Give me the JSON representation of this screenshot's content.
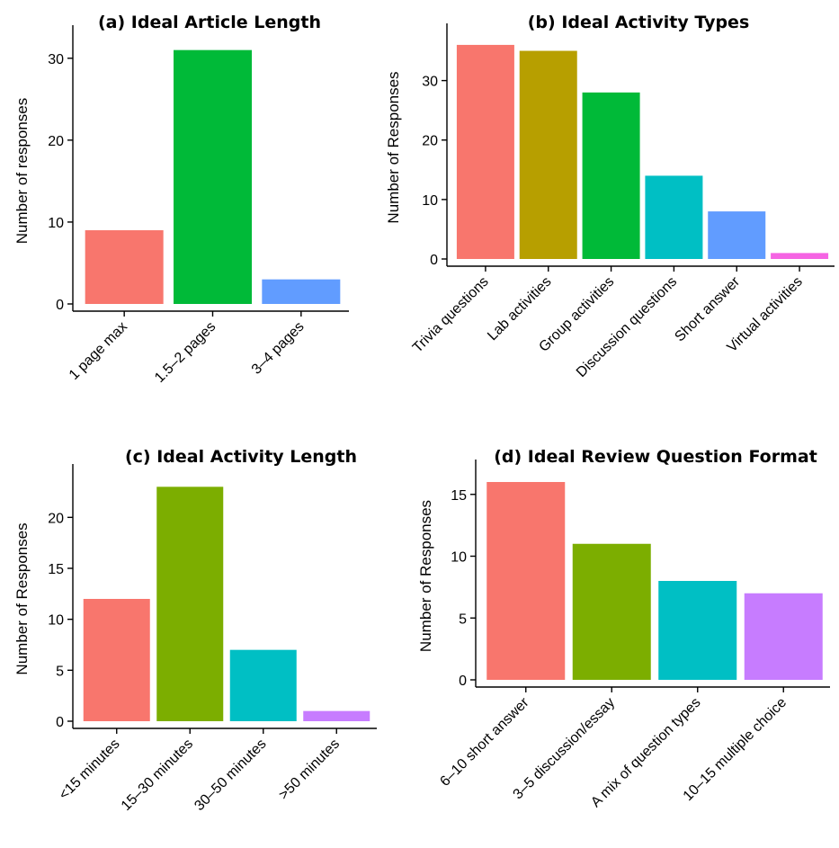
{
  "chart_data": [
    {
      "type": "bar",
      "title": "(a) Ideal Article Length",
      "xlabel": "",
      "ylabel": "Number of responses",
      "ylim": [
        0,
        32.5
      ],
      "yticks": [
        0,
        10,
        20,
        30
      ],
      "categories": [
        "1 page max",
        "1.5–2 pages",
        "3–4 pages"
      ],
      "values": [
        9,
        31,
        3
      ],
      "colors": [
        "#F8766D",
        "#00BA38",
        "#619CFF"
      ],
      "grid": false,
      "legend": "none"
    },
    {
      "type": "bar",
      "title": "(b) Ideal Activity Types",
      "xlabel": "",
      "ylabel": "Number of Responses",
      "ylim": [
        0,
        37.5
      ],
      "yticks": [
        0,
        10,
        20,
        30
      ],
      "categories": [
        "Trivia questions",
        "Lab activities",
        "Group activities",
        "Discussion questions",
        "Short answer",
        "Virtual activities"
      ],
      "values": [
        36,
        35,
        28,
        14,
        8,
        1
      ],
      "colors": [
        "#F8766D",
        "#B79F00",
        "#00BA38",
        "#00BFC4",
        "#619CFF",
        "#F564E3"
      ],
      "grid": false,
      "legend": "none"
    },
    {
      "type": "bar",
      "title": "(c) Ideal Activity Length",
      "xlabel": "",
      "ylabel": "Number of Responses",
      "ylim": [
        0,
        24
      ],
      "yticks": [
        0,
        5,
        10,
        15,
        20
      ],
      "categories": [
        "<15 minutes",
        "15–30 minutes",
        "30–50 minutes",
        ">50 minutes"
      ],
      "values": [
        12,
        23,
        7,
        1
      ],
      "colors": [
        "#F8766D",
        "#7CAE00",
        "#00BFC4",
        "#C77CFF"
      ],
      "grid": false,
      "legend": "none"
    },
    {
      "type": "bar",
      "title": "(d) Ideal Review Question Format",
      "xlabel": "",
      "ylabel": "Number of Responses",
      "ylim": [
        0,
        16.8
      ],
      "yticks": [
        0,
        5,
        10,
        15
      ],
      "categories": [
        "6–10 short answer",
        "3–5 discussion/essay",
        "A mix of question types",
        "10–15 multiple choice"
      ],
      "values": [
        16,
        11,
        8,
        7
      ],
      "colors": [
        "#F8766D",
        "#7CAE00",
        "#00BFC4",
        "#C77CFF"
      ],
      "grid": false,
      "legend": "none"
    }
  ]
}
